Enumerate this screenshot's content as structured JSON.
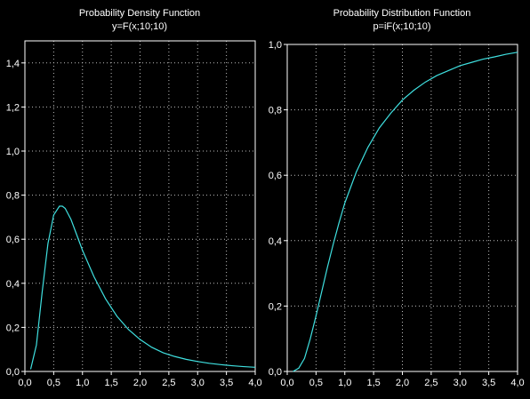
{
  "colors": {
    "background": "#000000",
    "curve": "#3fe0e0",
    "axes": "#ffffff",
    "grid": "#bdbdbd"
  },
  "chart_data": [
    {
      "type": "line",
      "title": "Probability Density Function",
      "subtitle": "y=F(x;10;10)",
      "xlim": [
        0,
        4
      ],
      "ylim": [
        0,
        1.5
      ],
      "x_ticks": [
        "0,0",
        "0,5",
        "1,0",
        "1,5",
        "2,0",
        "2,5",
        "3,0",
        "3,5",
        "4,0"
      ],
      "y_ticks": [
        "0,0",
        "0,2",
        "0,4",
        "0,6",
        "0,8",
        "1,0",
        "1,2",
        "1,4"
      ],
      "x_tick_values": [
        0,
        0.5,
        1,
        1.5,
        2,
        2.5,
        3,
        3.5,
        4
      ],
      "y_tick_values": [
        0,
        0.2,
        0.4,
        0.6,
        0.8,
        1.0,
        1.2,
        1.4
      ],
      "grid": true,
      "series": [
        {
          "x": [
            0.1,
            0.2,
            0.3,
            0.4,
            0.5,
            0.6,
            0.65,
            0.7,
            0.8,
            0.9,
            1.0,
            1.2,
            1.4,
            1.6,
            1.8,
            2.0,
            2.2,
            2.4,
            2.6,
            2.8,
            3.0,
            3.2,
            3.4,
            3.6,
            3.8,
            4.0
          ],
          "values": [
            0.01,
            0.12,
            0.36,
            0.58,
            0.71,
            0.75,
            0.75,
            0.74,
            0.69,
            0.62,
            0.55,
            0.43,
            0.33,
            0.25,
            0.19,
            0.145,
            0.11,
            0.085,
            0.068,
            0.055,
            0.045,
            0.037,
            0.031,
            0.026,
            0.022,
            0.019
          ]
        }
      ]
    },
    {
      "type": "line",
      "title": "Probability Distribution Function",
      "subtitle": "p=iF(x;10;10)",
      "xlim": [
        0,
        4
      ],
      "ylim": [
        0,
        1.0
      ],
      "x_ticks": [
        "0,0",
        "0,5",
        "1,0",
        "1,5",
        "2,0",
        "2,5",
        "3,0",
        "3,5",
        "4,0"
      ],
      "y_ticks": [
        "0,0",
        "0,2",
        "0,4",
        "0,6",
        "0,8",
        "1,0"
      ],
      "x_tick_values": [
        0,
        0.5,
        1,
        1.5,
        2,
        2.5,
        3,
        3.5,
        4
      ],
      "y_tick_values": [
        0,
        0.2,
        0.4,
        0.6,
        0.8,
        1.0
      ],
      "grid": true,
      "series": [
        {
          "x": [
            0.1,
            0.2,
            0.3,
            0.4,
            0.5,
            0.6,
            0.7,
            0.8,
            0.9,
            1.0,
            1.2,
            1.4,
            1.6,
            1.8,
            2.0,
            2.2,
            2.4,
            2.6,
            2.8,
            3.0,
            3.2,
            3.4,
            3.6,
            3.8,
            4.0
          ],
          "values": [
            0.0,
            0.01,
            0.04,
            0.1,
            0.17,
            0.245,
            0.32,
            0.39,
            0.455,
            0.515,
            0.61,
            0.685,
            0.745,
            0.79,
            0.83,
            0.86,
            0.885,
            0.905,
            0.92,
            0.935,
            0.945,
            0.955,
            0.962,
            0.97,
            0.976
          ]
        }
      ]
    }
  ]
}
